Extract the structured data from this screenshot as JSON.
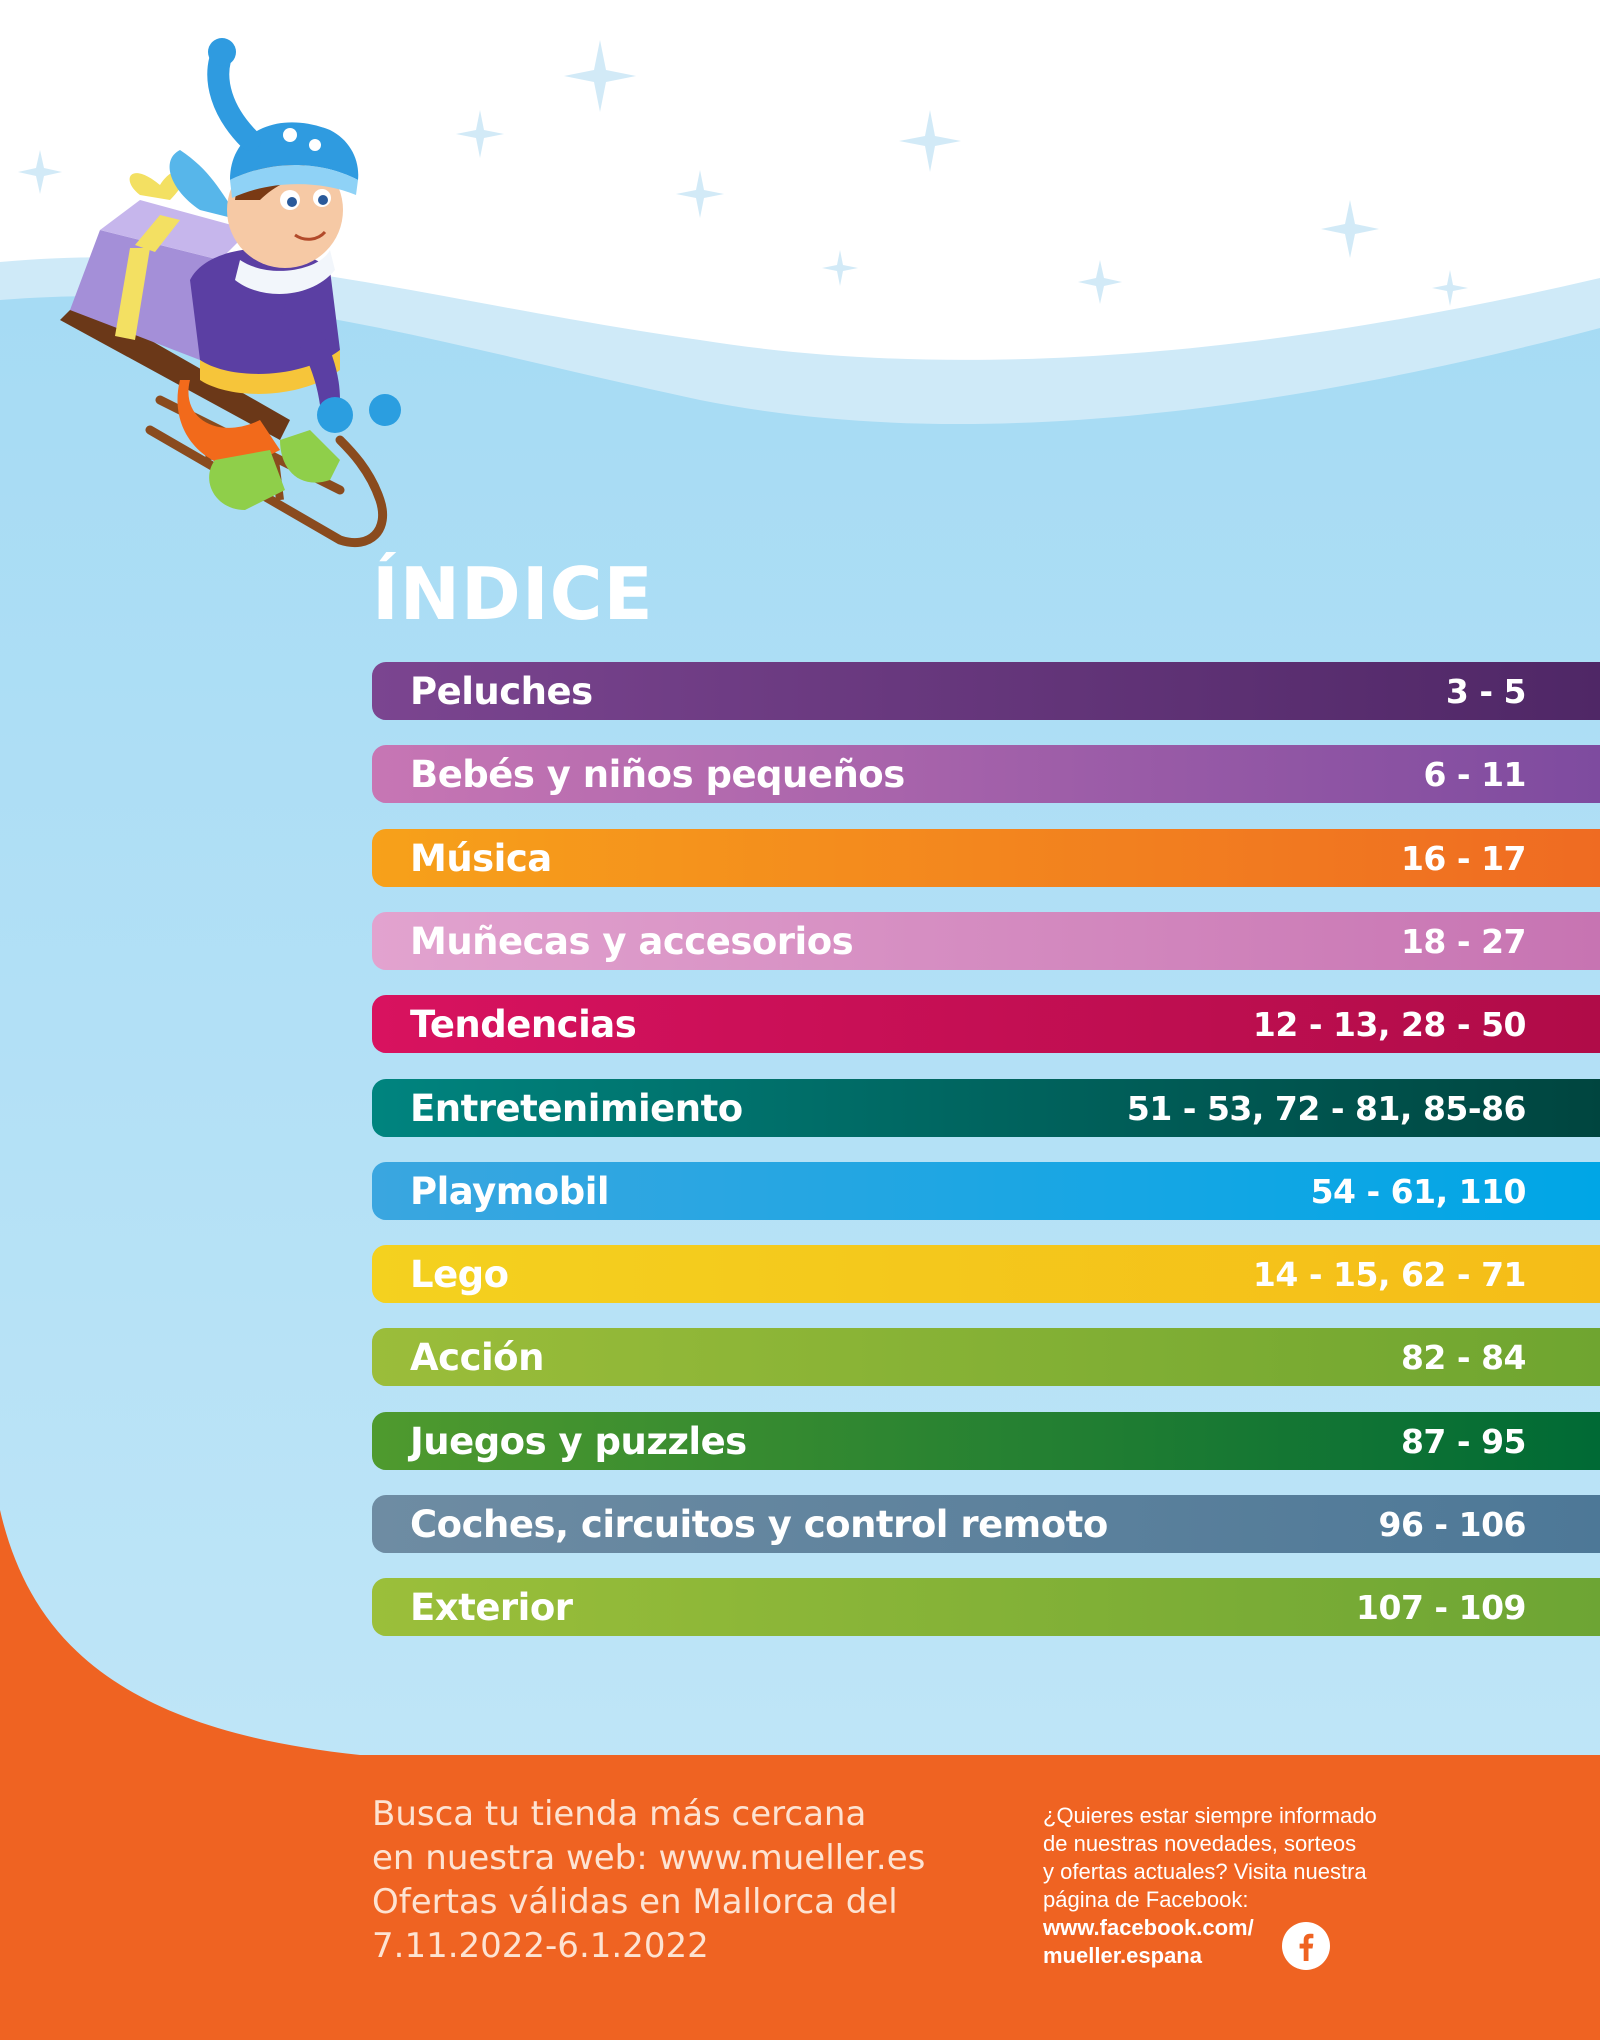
{
  "title": "ÍNDICE",
  "colors": {
    "sky": "#b5e0f6",
    "orange": "#ef6322",
    "white": "#ffffff"
  },
  "sections": [
    {
      "label": "Peluches",
      "pages": "3 - 5",
      "colors": [
        "#7b4590",
        "#4f2766"
      ]
    },
    {
      "label": "Bebés y niños pequeños",
      "pages": "6 - 11",
      "colors": [
        "#c776b4",
        "#7e4b9f"
      ]
    },
    {
      "label": "Música",
      "pages": "16 - 17",
      "colors": [
        "#f7a11a",
        "#ef6b22"
      ]
    },
    {
      "label": "Muñecas y accesorios",
      "pages": "18 - 27",
      "colors": [
        "#e2a3cf",
        "#c774b2"
      ]
    },
    {
      "label": "Tendencias",
      "pages": "12 - 13, 28 - 50",
      "colors": [
        "#d8125f",
        "#b00c48"
      ]
    },
    {
      "label": "Entretenimiento",
      "pages": "51 - 53, 72 - 81, 85-86",
      "colors": [
        "#00847f",
        "#00453f"
      ]
    },
    {
      "label": "Playmobil",
      "pages": "54 - 61, 110",
      "colors": [
        "#3aa6e0",
        "#00a6e6"
      ]
    },
    {
      "label": "Lego",
      "pages": "14 - 15, 62 - 71",
      "colors": [
        "#f4d11f",
        "#f5bd18"
      ]
    },
    {
      "label": "Acción",
      "pages": "82 - 84",
      "colors": [
        "#9bbd3a",
        "#6fa530"
      ]
    },
    {
      "label": "Juegos y puzzles",
      "pages": "87 - 95",
      "colors": [
        "#4f9a2e",
        "#006a35"
      ]
    },
    {
      "label": "Coches, circuitos y control remoto",
      "pages": "96 - 106",
      "colors": [
        "#6e8ca3",
        "#4d7897"
      ]
    },
    {
      "label": "Exterior",
      "pages": "107 - 109",
      "colors": [
        "#9bbf3a",
        "#6da534"
      ]
    }
  ],
  "footer": {
    "left_lines": [
      "Busca tu tienda más cercana",
      "en nuestra web: www.mueller.es",
      "Ofertas válidas en Mallorca del",
      "7.11.2022-6.1.2022"
    ],
    "right_lines": [
      "¿Quieres estar siempre informado",
      "de nuestras novedades, sorteos",
      "y ofertas actuales? Visita nuestra",
      "página de Facebook:"
    ],
    "facebook_lines": [
      "www.facebook.com/",
      "mueller.espana"
    ],
    "icon": "facebook-icon"
  }
}
